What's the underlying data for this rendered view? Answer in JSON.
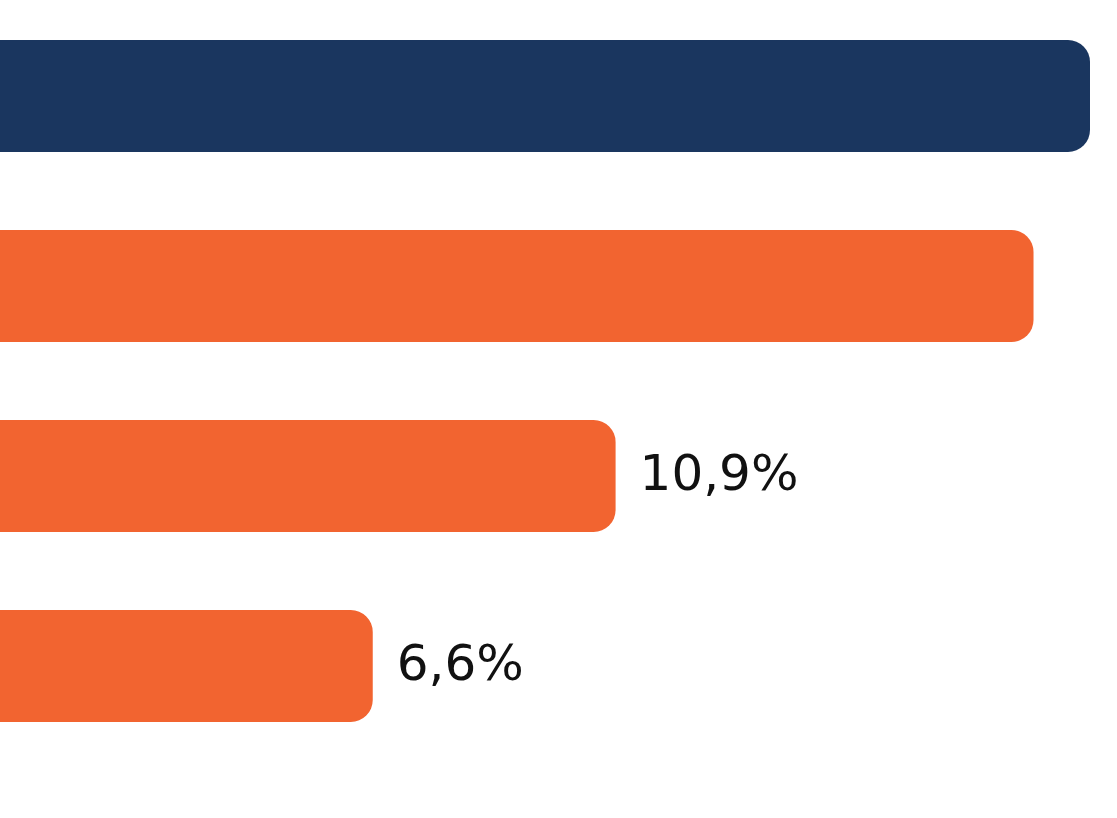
{
  "chart_data": {
    "type": "bar",
    "orientation": "horizontal",
    "categories": [
      null,
      null,
      null,
      null
    ],
    "values": [
      19.3,
      18.3,
      10.9,
      6.6
    ],
    "colors": [
      "#1a365f",
      "#f26430",
      "#f26430",
      "#f26430"
    ],
    "value_labels": [
      null,
      null,
      "10,9%",
      "6,6%"
    ]
  }
}
